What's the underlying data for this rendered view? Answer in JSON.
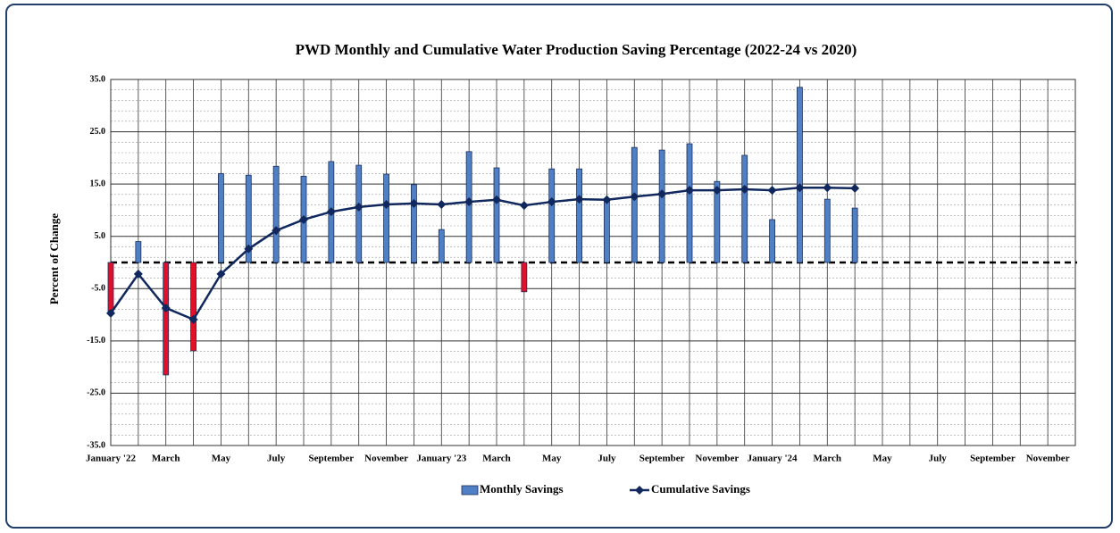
{
  "chart_data": {
    "type": "bar_line",
    "title": "PWD Monthly and Cumulative Water Production Saving Percentage (2022-24 vs 2020)",
    "y_label": "Percent of Change",
    "categories": [
      "January '22",
      null,
      "March",
      null,
      "May",
      null,
      "July",
      null,
      "September",
      null,
      "November",
      null,
      "January '23",
      null,
      "March",
      null,
      "May",
      null,
      "July",
      null,
      "September",
      null,
      "November",
      null,
      "January '24",
      null,
      "March",
      null,
      "May",
      null,
      "July",
      null,
      "September",
      null,
      "November",
      null
    ],
    "series": [
      {
        "name": "Monthly Savings",
        "kind": "bar",
        "color": "#4f7fc4",
        "negative_color": "#e0102a",
        "values": [
          -9.7,
          4.0,
          -21.5,
          -16.9,
          17.0,
          16.7,
          18.4,
          16.5,
          19.3,
          18.6,
          16.9,
          14.9,
          6.3,
          21.2,
          18.1,
          -5.6,
          17.9,
          17.9,
          12.0,
          22.0,
          21.5,
          22.7,
          15.5,
          20.5,
          8.2,
          33.5,
          12.1,
          10.4,
          null,
          null,
          null,
          null,
          null,
          null,
          null,
          null
        ]
      },
      {
        "name": "Cumulative Savings",
        "kind": "line",
        "color": "#10285e",
        "values": [
          -9.7,
          -2.2,
          -8.7,
          -10.9,
          -2.2,
          2.6,
          6.1,
          8.2,
          9.7,
          10.6,
          11.1,
          11.3,
          11.1,
          11.6,
          12.0,
          10.9,
          11.6,
          12.1,
          12.0,
          12.6,
          13.1,
          13.8,
          13.8,
          14.0,
          13.8,
          14.3,
          14.3,
          14.2,
          null,
          null,
          null,
          null,
          null,
          null,
          null,
          null
        ]
      }
    ],
    "ylim": [
      -35,
      35
    ],
    "yticks": [
      {
        "value": 35,
        "label": "35.0"
      },
      {
        "value": 25,
        "label": "25.0"
      },
      {
        "value": 15,
        "label": "15.0"
      },
      {
        "value": 5,
        "label": "5.0"
      },
      {
        "value": -5,
        "label": "-5.0"
      },
      {
        "value": -15,
        "label": "-15.0"
      },
      {
        "value": -25,
        "label": "-25.0"
      },
      {
        "value": -35,
        "label": "-35.0"
      }
    ],
    "grid": true,
    "legend": "bottom"
  }
}
